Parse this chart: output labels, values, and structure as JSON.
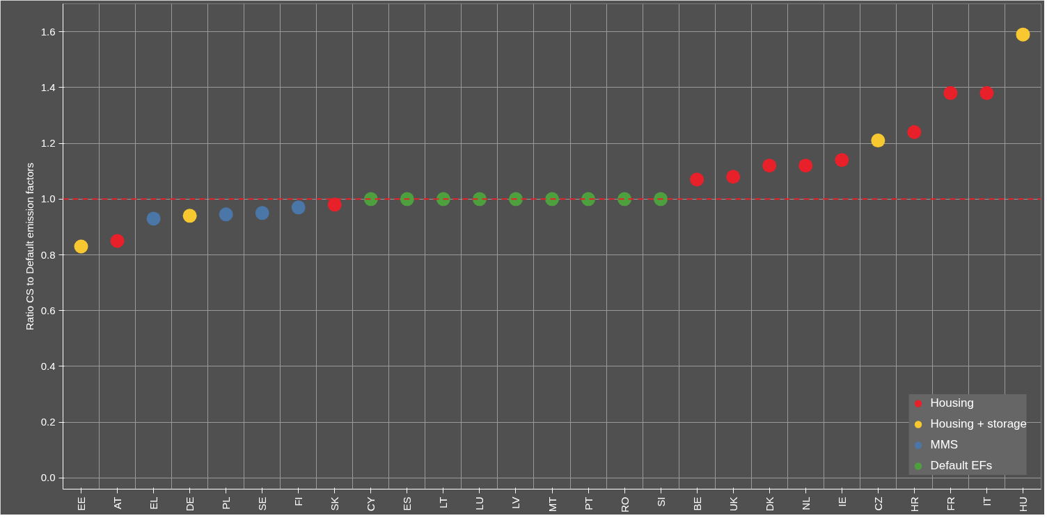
{
  "chart_data": {
    "type": "scatter",
    "ylabel": "Ratio CS to Default emission factors",
    "categories": [
      "EE",
      "AT",
      "EL",
      "DE",
      "PL",
      "SE",
      "FI",
      "SK",
      "CY",
      "ES",
      "LT",
      "LU",
      "LV",
      "MT",
      "PT",
      "RO",
      "SI",
      "BE",
      "UK",
      "DK",
      "NL",
      "IE",
      "CZ",
      "HR",
      "FR",
      "IT",
      "HU"
    ],
    "series": [
      {
        "name": "Housing",
        "color": "#e8202a",
        "values": [
          null,
          0.85,
          null,
          null,
          null,
          null,
          null,
          0.98,
          null,
          null,
          null,
          null,
          null,
          null,
          null,
          null,
          null,
          1.07,
          1.08,
          1.12,
          1.12,
          1.14,
          null,
          1.24,
          1.38,
          1.38,
          null
        ]
      },
      {
        "name": "Housing + storage",
        "color": "#f8c830",
        "values": [
          0.83,
          null,
          null,
          0.94,
          null,
          null,
          null,
          null,
          null,
          null,
          null,
          null,
          null,
          null,
          null,
          null,
          null,
          null,
          null,
          null,
          null,
          null,
          1.21,
          null,
          null,
          null,
          1.59
        ]
      },
      {
        "name": "MMS",
        "color": "#4a76a8",
        "values": [
          null,
          null,
          0.93,
          null,
          0.945,
          0.95,
          0.97,
          null,
          null,
          null,
          null,
          null,
          null,
          null,
          null,
          null,
          null,
          null,
          null,
          null,
          null,
          null,
          null,
          null,
          null,
          null,
          null
        ]
      },
      {
        "name": "Default EFs",
        "color": "#4e9f3d",
        "values": [
          null,
          null,
          null,
          null,
          null,
          null,
          null,
          null,
          1.0,
          1.0,
          1.0,
          1.0,
          1.0,
          1.0,
          1.0,
          1.0,
          1.0,
          null,
          null,
          null,
          null,
          null,
          null,
          null,
          null,
          null,
          null
        ]
      }
    ],
    "ylim": [
      -0.04,
      1.7
    ],
    "yticks": [
      {
        "value": 0,
        "label": "0.0"
      },
      {
        "value": 0.2,
        "label": "0.2"
      },
      {
        "value": 0.4,
        "label": "0.4"
      },
      {
        "value": 0.6,
        "label": "0.6"
      },
      {
        "value": 0.8,
        "label": "0.8"
      },
      {
        "value": 1.0,
        "label": "1.0"
      },
      {
        "value": 1.2,
        "label": "1.2"
      },
      {
        "value": 1.4,
        "label": "1.4"
      },
      {
        "value": 1.6,
        "label": "1.6"
      }
    ],
    "ref_lines": [
      {
        "axis": "y",
        "value": 1.0,
        "color": "#e8202a",
        "line_style": "dashed"
      }
    ],
    "grid": true,
    "legend": "bottom right",
    "marker": "circle"
  }
}
